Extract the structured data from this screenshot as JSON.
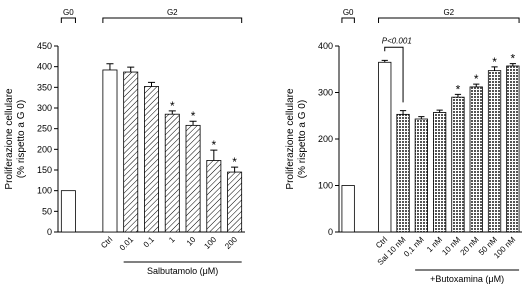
{
  "chart_data": [
    {
      "type": "bar",
      "group_labels": [
        "G0",
        "G2"
      ],
      "y_label": [
        "Proliferazione cellulare",
        "(% rispetto a G 0)"
      ],
      "x_label": "Salbutamolo (μM)",
      "categories": [
        null,
        null,
        "Ctrl",
        "0.01",
        "0.1",
        "1",
        "10",
        "100",
        "200"
      ],
      "values": [
        100,
        null,
        392,
        387,
        352,
        285,
        258,
        173,
        145
      ],
      "errors": [
        null,
        null,
        15,
        12,
        10,
        8,
        10,
        25,
        12
      ],
      "stars": [
        null,
        null,
        null,
        null,
        null,
        "*",
        "*",
        "*",
        "*"
      ],
      "hatched": [
        false,
        false,
        false,
        true,
        true,
        true,
        true,
        true,
        true
      ],
      "hatch": "diagonal",
      "ylim": [
        0,
        450
      ],
      "yticks": [
        0,
        50,
        100,
        150,
        200,
        250,
        300,
        350,
        400,
        450
      ]
    },
    {
      "type": "bar",
      "group_labels": [
        "G0",
        "G2"
      ],
      "y_label": [
        "Proliferazione cellulare",
        "(% rispetto a G 0)"
      ],
      "x_label": "+Butoxamina (μM)",
      "annotation": "P<0.001",
      "categories": [
        null,
        null,
        "Ctrl",
        "Sal 10 nM",
        "0,1 nM",
        "1 nM",
        "10 nM",
        "20 nM",
        "50 nM",
        "100 nM"
      ],
      "values": [
        100,
        null,
        365,
        253,
        243,
        257,
        290,
        312,
        347,
        357
      ],
      "errors": [
        null,
        null,
        4,
        8,
        5,
        5,
        6,
        6,
        8,
        5
      ],
      "stars": [
        null,
        null,
        null,
        null,
        null,
        null,
        "*",
        "*",
        "*",
        "*"
      ],
      "hatched": [
        false,
        false,
        false,
        true,
        true,
        true,
        true,
        true,
        true,
        true
      ],
      "hatch": "cross",
      "ylim": [
        0,
        400
      ],
      "yticks": [
        0,
        100,
        200,
        300,
        400
      ]
    }
  ]
}
